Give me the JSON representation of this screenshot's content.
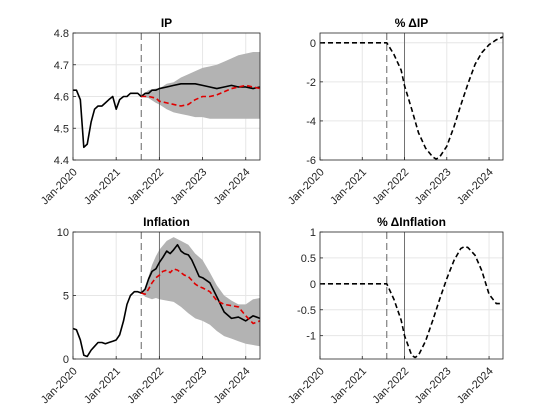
{
  "chart_data": [
    {
      "type": "line",
      "title": "IP",
      "x_range": [
        2020.0,
        2024.33
      ],
      "x_tick_values": [
        2020,
        2021,
        2022,
        2023,
        2024
      ],
      "x_tick_labels": [
        "Jan-2020",
        "Jan-2021",
        "Jan-2022",
        "Jan-2023",
        "Jan-2024"
      ],
      "ylim": [
        4.4,
        4.8
      ],
      "y_ticks": [
        4.4,
        4.5,
        4.6,
        4.7,
        4.8
      ],
      "y_tick_labels": [
        "4.4",
        "4.5",
        "4.6",
        "4.7",
        "4.8"
      ],
      "vline_dashed": 2021.58,
      "vline_solid": 2022.0,
      "series": [
        {
          "name": "actual",
          "style": "solid-black",
          "x": [
            2020.0,
            2020.08,
            2020.17,
            2020.25,
            2020.33,
            2020.42,
            2020.5,
            2020.58,
            2020.67,
            2020.75,
            2020.83,
            2020.92,
            2021.0,
            2021.08,
            2021.17,
            2021.25,
            2021.33,
            2021.42,
            2021.5,
            2021.58,
            2021.67,
            2021.75,
            2021.83,
            2021.92,
            2022.0,
            2022.17,
            2022.33,
            2022.5,
            2022.67,
            2022.83,
            2023.0,
            2023.17,
            2023.33,
            2023.5,
            2023.67,
            2023.83,
            2024.0,
            2024.17,
            2024.33
          ],
          "values": [
            4.62,
            4.62,
            4.59,
            4.44,
            4.45,
            4.52,
            4.56,
            4.57,
            4.57,
            4.58,
            4.59,
            4.6,
            4.56,
            4.59,
            4.6,
            4.6,
            4.61,
            4.61,
            4.61,
            4.6,
            4.61,
            4.61,
            4.62,
            4.62,
            4.625,
            4.63,
            4.635,
            4.64,
            4.64,
            4.64,
            4.635,
            4.63,
            4.625,
            4.63,
            4.635,
            4.63,
            4.63,
            4.625,
            4.63
          ]
        },
        {
          "name": "forecast",
          "style": "dashed-red",
          "x": [
            2021.58,
            2021.75,
            2021.92,
            2022.0,
            2022.17,
            2022.33,
            2022.5,
            2022.67,
            2022.83,
            2023.0,
            2023.17,
            2023.33,
            2023.5,
            2023.67,
            2023.83,
            2024.0,
            2024.17,
            2024.33
          ],
          "values": [
            4.6,
            4.6,
            4.595,
            4.585,
            4.58,
            4.575,
            4.57,
            4.575,
            4.59,
            4.6,
            4.6,
            4.605,
            4.615,
            4.625,
            4.63,
            4.635,
            4.63,
            4.625
          ]
        }
      ],
      "band": {
        "x": [
          2021.58,
          2021.75,
          2021.92,
          2022.0,
          2022.17,
          2022.33,
          2022.5,
          2022.67,
          2022.83,
          2023.0,
          2023.17,
          2023.33,
          2023.5,
          2023.67,
          2023.83,
          2024.0,
          2024.17,
          2024.33
        ],
        "lower": [
          4.6,
          4.595,
          4.58,
          4.575,
          4.56,
          4.55,
          4.545,
          4.54,
          4.535,
          4.535,
          4.53,
          4.53,
          4.53,
          4.53,
          4.53,
          4.53,
          4.53,
          4.53
        ],
        "upper": [
          4.6,
          4.62,
          4.625,
          4.625,
          4.64,
          4.645,
          4.66,
          4.67,
          4.68,
          4.69,
          4.695,
          4.7,
          4.71,
          4.72,
          4.73,
          4.735,
          4.74,
          4.74
        ]
      }
    },
    {
      "type": "line",
      "title": "% ΔIP",
      "x_range": [
        2020.0,
        2024.33
      ],
      "x_tick_values": [
        2020,
        2021,
        2022,
        2023,
        2024
      ],
      "x_tick_labels": [
        "Jan-2020",
        "Jan-2021",
        "Jan-2022",
        "Jan-2023",
        "Jan-2024"
      ],
      "ylim": [
        -6,
        0.5
      ],
      "y_ticks": [
        -6,
        -4,
        -2,
        0
      ],
      "y_tick_labels": [
        "-6",
        "-4",
        "-2",
        "0"
      ],
      "vline_dashed": 2021.58,
      "vline_solid": 2022.0,
      "series": [
        {
          "name": "pct_change",
          "style": "dashed-black",
          "x": [
            2020.0,
            2020.5,
            2021.0,
            2021.5,
            2021.58,
            2021.75,
            2021.92,
            2022.0,
            2022.17,
            2022.33,
            2022.5,
            2022.67,
            2022.75,
            2022.83,
            2023.0,
            2023.17,
            2023.33,
            2023.5,
            2023.67,
            2023.83,
            2024.0,
            2024.17,
            2024.33
          ],
          "values": [
            0,
            0,
            0,
            0,
            0,
            -0.6,
            -1.4,
            -2.2,
            -3.4,
            -4.6,
            -5.4,
            -5.85,
            -5.95,
            -5.85,
            -5.3,
            -4.3,
            -3.2,
            -2.1,
            -1.1,
            -0.5,
            -0.1,
            0.15,
            0.3
          ]
        }
      ]
    },
    {
      "type": "line",
      "title": "Inflation",
      "x_range": [
        2020.0,
        2024.33
      ],
      "x_tick_values": [
        2020,
        2021,
        2022,
        2023,
        2024
      ],
      "x_tick_labels": [
        "Jan-2020",
        "Jan-2021",
        "Jan-2022",
        "Jan-2023",
        "Jan-2024"
      ],
      "ylim": [
        0,
        10
      ],
      "y_ticks": [
        0,
        5,
        10
      ],
      "y_tick_labels": [
        "0",
        "5",
        "10"
      ],
      "vline_dashed": 2021.58,
      "vline_solid": 2022.0,
      "series": [
        {
          "name": "actual",
          "style": "solid-black",
          "x": [
            2020.0,
            2020.08,
            2020.17,
            2020.25,
            2020.33,
            2020.42,
            2020.5,
            2020.58,
            2020.67,
            2020.75,
            2020.83,
            2020.92,
            2021.0,
            2021.08,
            2021.17,
            2021.25,
            2021.33,
            2021.42,
            2021.5,
            2021.58,
            2021.67,
            2021.75,
            2021.83,
            2021.92,
            2022.0,
            2022.08,
            2022.17,
            2022.25,
            2022.33,
            2022.42,
            2022.5,
            2022.58,
            2022.67,
            2022.75,
            2022.83,
            2022.92,
            2023.0,
            2023.17,
            2023.33,
            2023.5,
            2023.67,
            2023.83,
            2024.0,
            2024.17,
            2024.33
          ],
          "values": [
            2.4,
            2.3,
            1.5,
            0.3,
            0.2,
            0.7,
            1.0,
            1.3,
            1.3,
            1.2,
            1.3,
            1.4,
            1.5,
            1.9,
            3.0,
            4.3,
            5.0,
            5.3,
            5.3,
            5.2,
            5.5,
            6.3,
            6.9,
            7.1,
            7.6,
            8.0,
            8.5,
            8.3,
            8.6,
            9.0,
            8.5,
            8.3,
            8.2,
            7.8,
            7.2,
            6.5,
            6.4,
            6.0,
            4.9,
            3.7,
            3.2,
            3.3,
            3.0,
            3.4,
            3.2
          ]
        },
        {
          "name": "forecast",
          "style": "dashed-red",
          "x": [
            2021.58,
            2021.67,
            2021.75,
            2021.83,
            2021.92,
            2022.0,
            2022.08,
            2022.17,
            2022.25,
            2022.33,
            2022.42,
            2022.5,
            2022.58,
            2022.67,
            2022.75,
            2022.83,
            2022.92,
            2023.0,
            2023.17,
            2023.33,
            2023.5,
            2023.67,
            2023.83,
            2024.0,
            2024.17,
            2024.33
          ],
          "values": [
            5.2,
            5.1,
            5.5,
            6.0,
            6.4,
            6.6,
            6.9,
            7.0,
            6.8,
            7.1,
            7.0,
            6.8,
            6.6,
            6.5,
            6.2,
            5.9,
            5.7,
            5.6,
            5.3,
            4.6,
            4.3,
            4.2,
            4.1,
            3.4,
            2.8,
            3.0
          ]
        }
      ],
      "band": {
        "x": [
          2021.58,
          2021.67,
          2021.75,
          2021.83,
          2021.92,
          2022.0,
          2022.17,
          2022.33,
          2022.5,
          2022.67,
          2022.83,
          2023.0,
          2023.17,
          2023.33,
          2023.5,
          2023.67,
          2023.83,
          2024.0,
          2024.17,
          2024.33
        ],
        "lower": [
          5.2,
          4.9,
          4.8,
          4.7,
          4.8,
          4.7,
          4.6,
          4.5,
          4.1,
          3.6,
          3.2,
          3.0,
          2.7,
          2.2,
          1.8,
          1.6,
          1.4,
          1.2,
          1.1,
          1.0
        ],
        "upper": [
          5.2,
          5.5,
          6.5,
          7.4,
          8.1,
          8.6,
          9.3,
          9.6,
          9.3,
          9.0,
          8.3,
          7.8,
          6.8,
          5.8,
          5.0,
          4.6,
          4.3,
          4.3,
          4.7,
          4.8
        ]
      }
    },
    {
      "type": "line",
      "title": "% ΔInflation",
      "x_range": [
        2020.0,
        2024.33
      ],
      "x_tick_values": [
        2020,
        2021,
        2022,
        2023,
        2024
      ],
      "x_tick_labels": [
        "Jan-2020",
        "Jan-2021",
        "Jan-2022",
        "Jan-2023",
        "Jan-2024"
      ],
      "ylim": [
        -1.45,
        1.0
      ],
      "y_ticks": [
        -1,
        -0.5,
        0,
        0.5,
        1
      ],
      "y_tick_labels": [
        "-1",
        "-0.5",
        "0",
        "0.5",
        "1"
      ],
      "vline_dashed": 2021.58,
      "vline_solid": 2022.0,
      "series": [
        {
          "name": "pct_change",
          "style": "dashed-black",
          "x": [
            2020.0,
            2020.5,
            2021.0,
            2021.5,
            2021.58,
            2021.75,
            2021.92,
            2022.0,
            2022.17,
            2022.25,
            2022.33,
            2022.5,
            2022.67,
            2022.83,
            2023.0,
            2023.17,
            2023.33,
            2023.42,
            2023.5,
            2023.67,
            2023.83,
            2024.0,
            2024.17,
            2024.33
          ],
          "values": [
            0,
            0,
            0,
            0,
            0,
            -0.3,
            -0.7,
            -1.0,
            -1.38,
            -1.42,
            -1.38,
            -1.1,
            -0.7,
            -0.3,
            0.1,
            0.45,
            0.68,
            0.72,
            0.7,
            0.55,
            0.25,
            -0.2,
            -0.38,
            -0.38
          ]
        }
      ]
    }
  ]
}
